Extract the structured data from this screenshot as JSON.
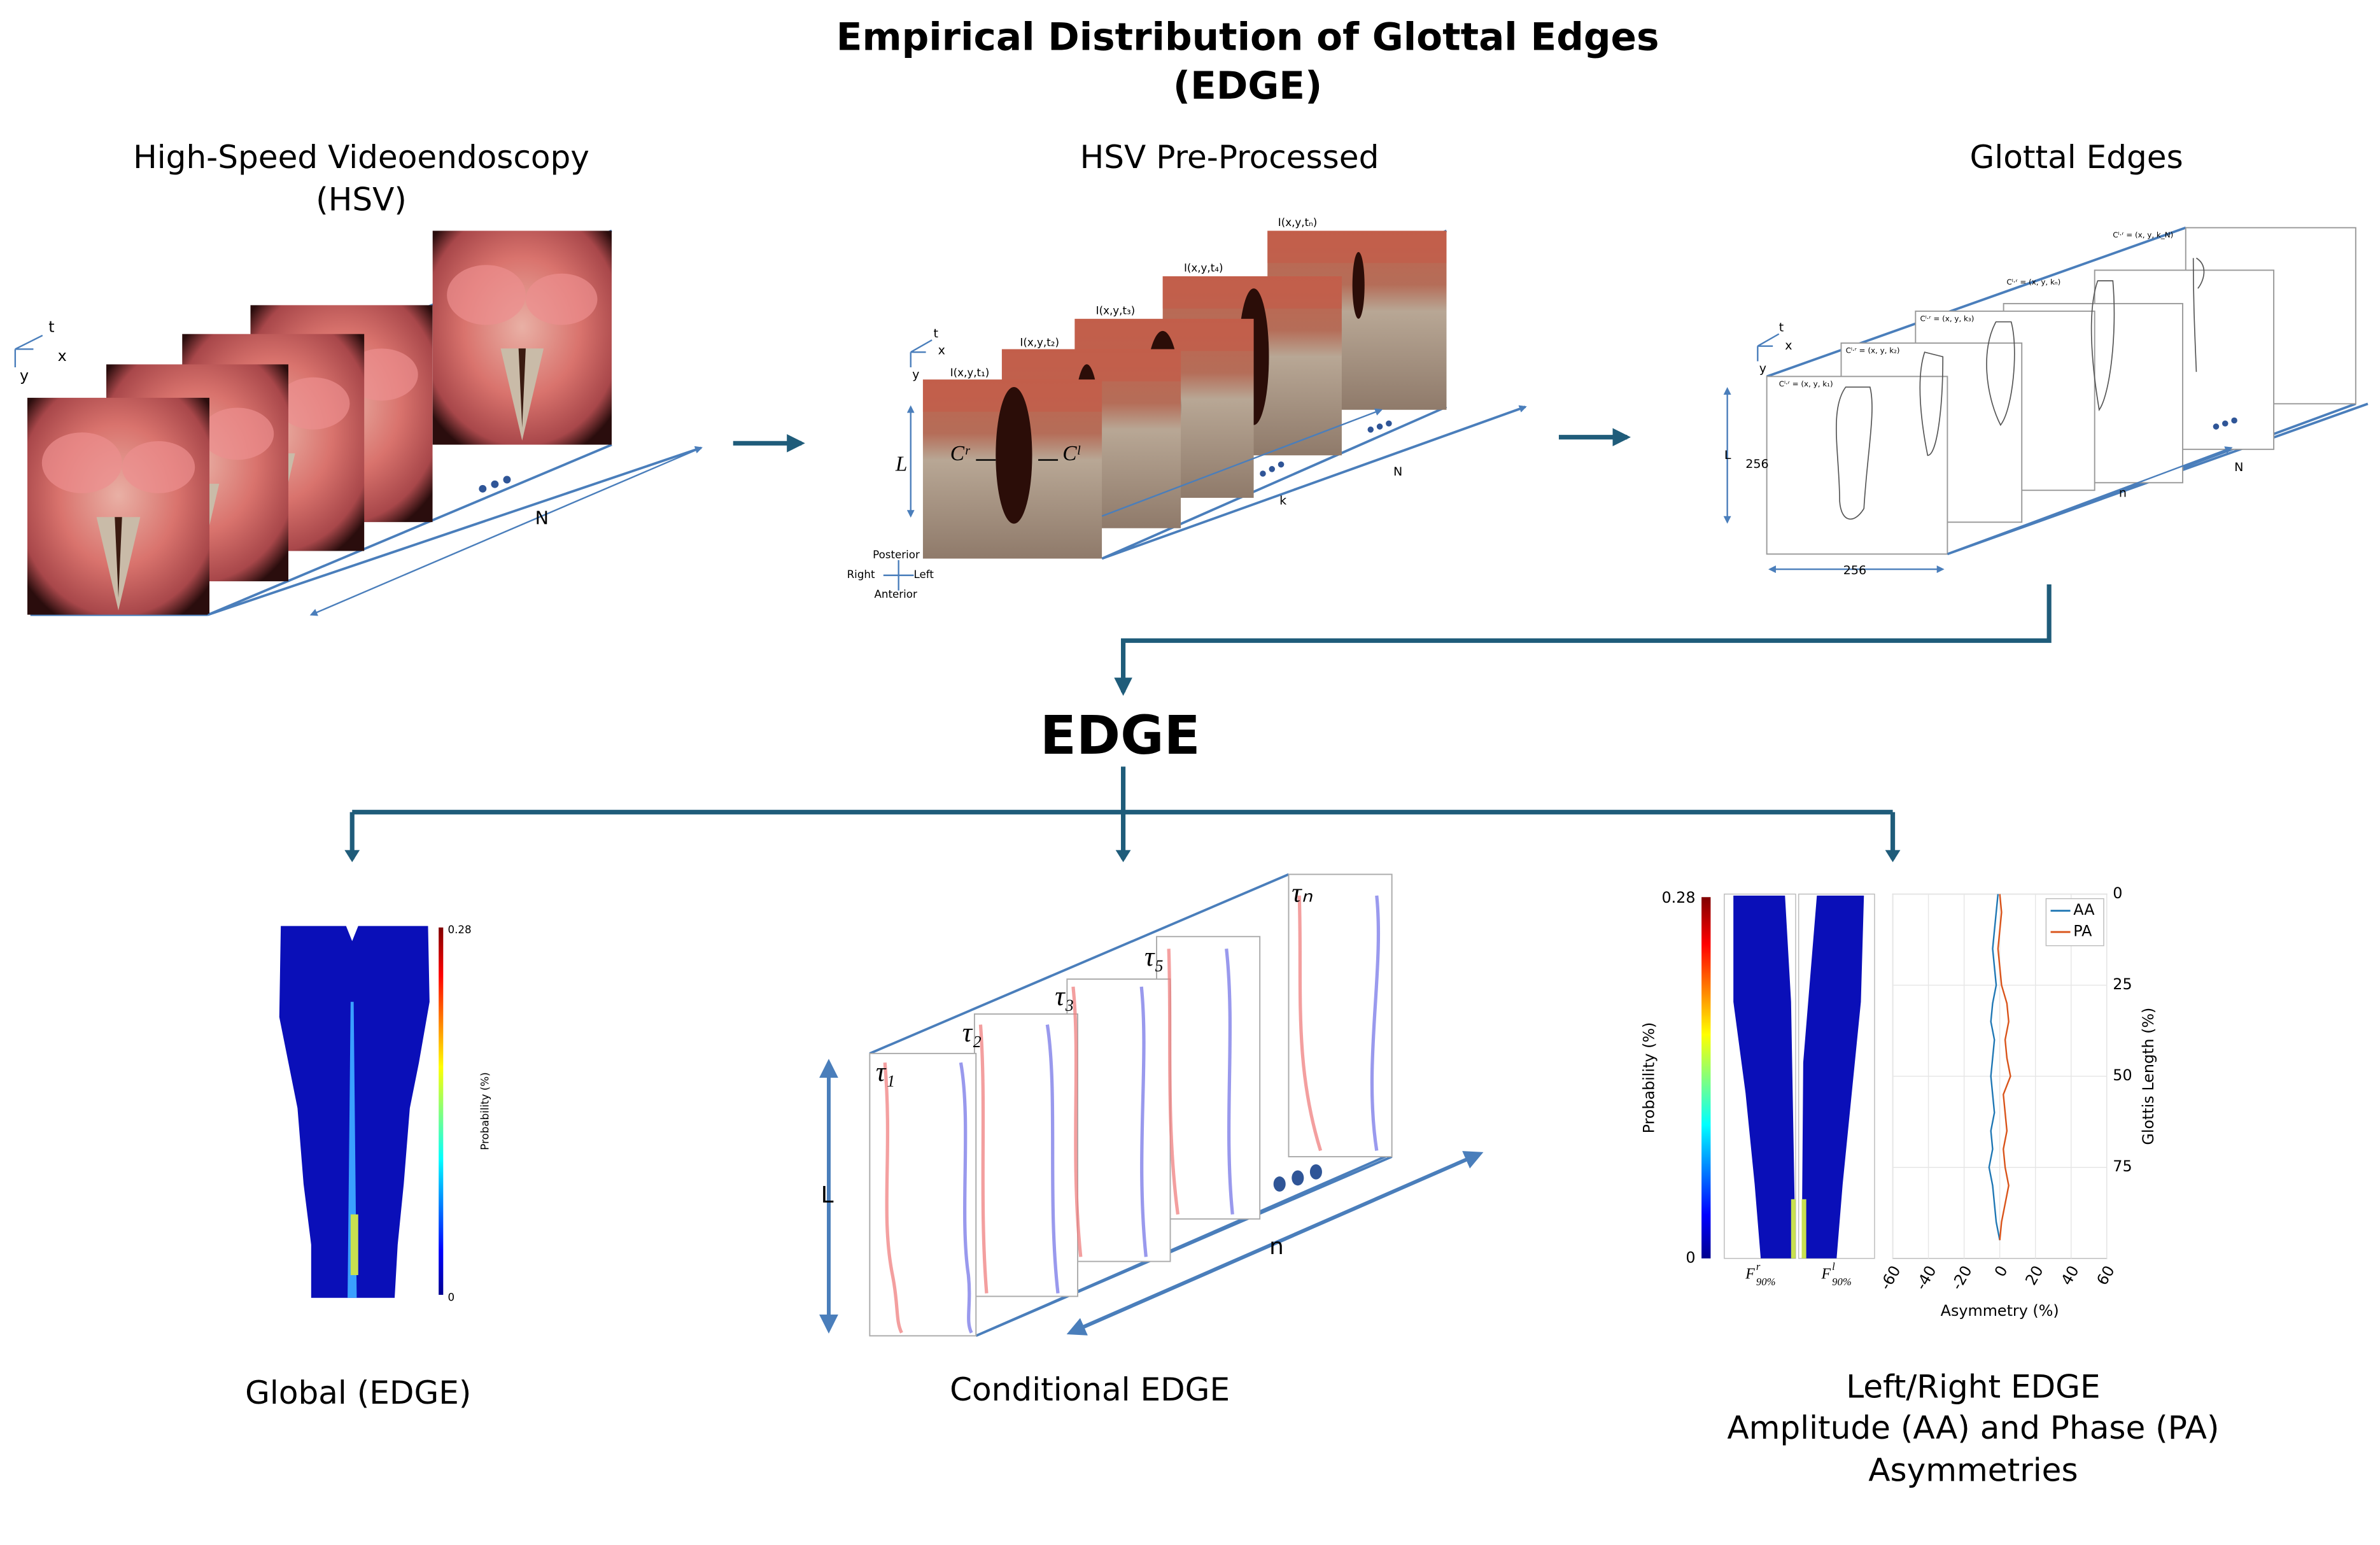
{
  "title": {
    "line1": "Empirical Distribution of Glottal Edges",
    "line2": "(EDGE)"
  },
  "hsv": {
    "title": "High-Speed Videoendoscopy",
    "subtitle": "(HSV)",
    "axis_t": "t",
    "axis_x": "x",
    "axis_y": "y",
    "depth": "N"
  },
  "preprocessed": {
    "title": "HSV Pre-Processed",
    "frames": [
      "I(x,y,t₁)",
      "I(x,y,t₂)",
      "I(x,y,t₃)",
      "I(x,y,t₄)",
      "I(x,y,tₙ)"
    ],
    "axis_t": "t",
    "axis_x": "x",
    "axis_y": "y",
    "length": "L",
    "right_edge": "Cʳ",
    "left_edge": "Cˡ",
    "depth_k": "k",
    "depth_n": "N",
    "posterior": "Posterior",
    "anterior": "Anterior",
    "right": "Right",
    "left": "Left"
  },
  "edges": {
    "title": "Glottal Edges",
    "frames": [
      "Cˡ·ʳ = (x, y, k₁)",
      "Cˡ·ʳ = (x, y, k₂)",
      "Cˡ·ʳ = (x, y, k₃)",
      "Cˡ·ʳ = (x, y, kₙ)",
      "Cˡ·ʳ = (x, y, k_N)"
    ],
    "axis_t": "t",
    "axis_x": "x",
    "axis_y": "y",
    "height": "256",
    "width": "256",
    "length": "L",
    "depth_n": "n",
    "depth_N": "N"
  },
  "center": "EDGE",
  "global": {
    "caption": "Global (EDGE)",
    "colorbar_max": 0.28,
    "colorbar_min": 0,
    "colorbar_label": "Probability (%)"
  },
  "conditional": {
    "caption": "Conditional EDGE",
    "frames": [
      "τ₁",
      "τ₂",
      "τ₃",
      "τ₅",
      "τₙ"
    ],
    "length": "L",
    "depth": "n"
  },
  "asymmetry": {
    "caption": [
      "Left/Right EDGE",
      "Amplitude (AA) and Phase (PA)",
      "Asymmetries"
    ],
    "colorbar_max": 0.28,
    "colorbar_min": 0,
    "colorbar_label": "Probability (%)",
    "right_map": {
      "symbol": "F",
      "sup": "r",
      "sub": "90%"
    },
    "left_map": {
      "symbol": "F",
      "sup": "l",
      "sub": "90%"
    },
    "chart": {
      "type": "line",
      "xlabel": "Asymmetry (%)",
      "ylabel": "Glottis Length (%)",
      "xlim": [
        -60,
        60
      ],
      "xticks": [
        -60,
        -40,
        -20,
        0,
        20,
        40,
        60
      ],
      "ylim": [
        0,
        100
      ],
      "yticks": [
        0,
        25,
        50,
        75
      ],
      "grid": true,
      "positions": [
        0,
        5,
        10,
        15,
        20,
        25,
        30,
        35,
        40,
        45,
        50,
        55,
        60,
        65,
        70,
        75,
        80,
        85,
        90,
        95
      ],
      "series": [
        {
          "name": "AA",
          "color": "#1f77b4",
          "values": [
            -1,
            -2,
            -3,
            -4,
            -3,
            -2,
            -4,
            -5,
            -3,
            -4,
            -5,
            -4,
            -3,
            -5,
            -4,
            -6,
            -4,
            -3,
            -2,
            0
          ]
        },
        {
          "name": "PA",
          "color": "#d95319",
          "values": [
            0,
            1,
            0,
            -1,
            0,
            1,
            4,
            5,
            3,
            4,
            6,
            2,
            3,
            4,
            2,
            3,
            5,
            3,
            1,
            0
          ]
        }
      ]
    }
  }
}
